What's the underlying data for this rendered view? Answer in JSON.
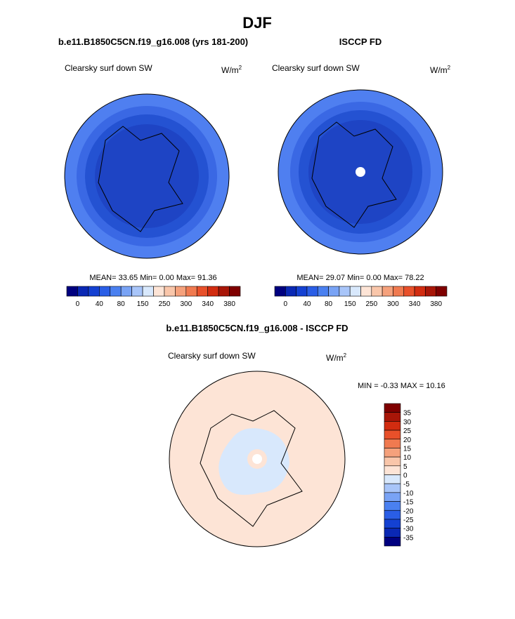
{
  "title": "DJF",
  "panels": [
    {
      "title": "b.e11.B1850C5CN.f19_g16.008 (yrs 181-200)",
      "variable": "Clearsky surf down SW",
      "units": "W/m",
      "units_sup": "2",
      "stats": "MEAN=  33.65  Min=   0.00  Max=  91.36"
    },
    {
      "title": "ISCCP FD",
      "variable": "Clearsky surf down SW",
      "units": "W/m",
      "units_sup": "2",
      "stats": "MEAN=  29.07  Min=   0.00  Max=  78.22"
    }
  ],
  "colorbar": {
    "colors": [
      "#00007f",
      "#0a28b4",
      "#1441d2",
      "#2a5ee6",
      "#4a80f0",
      "#79a3f5",
      "#a8c5f9",
      "#d8e8fc",
      "#fde4d6",
      "#f9c6aa",
      "#f5a17c",
      "#f07a50",
      "#e8502a",
      "#d22c10",
      "#a81608",
      "#7f0000"
    ],
    "labels": [
      "0",
      "40",
      "80",
      "150",
      "250",
      "300",
      "340",
      "380"
    ]
  },
  "diff": {
    "title": "b.e11.B1850C5CN.f19_g16.008 - ISCCP FD",
    "variable": "Clearsky surf down SW",
    "units": "W/m",
    "units_sup": "2",
    "stats": "MIN =  -0.33 MAX =  10.16",
    "colorbar": {
      "colors": [
        "#7f0000",
        "#a81608",
        "#d22c10",
        "#e8502a",
        "#f07a50",
        "#f5a17c",
        "#f9c6aa",
        "#fde4d6",
        "#d8e8fc",
        "#a8c5f9",
        "#79a3f5",
        "#4a80f0",
        "#2a5ee6",
        "#1441d2",
        "#0a28b4",
        "#00007f"
      ],
      "labels": [
        "35",
        "30",
        "25",
        "20",
        "15",
        "10",
        "5",
        "0",
        "-5",
        "-10",
        "-15",
        "-20",
        "-25",
        "-30",
        "-35"
      ]
    }
  }
}
